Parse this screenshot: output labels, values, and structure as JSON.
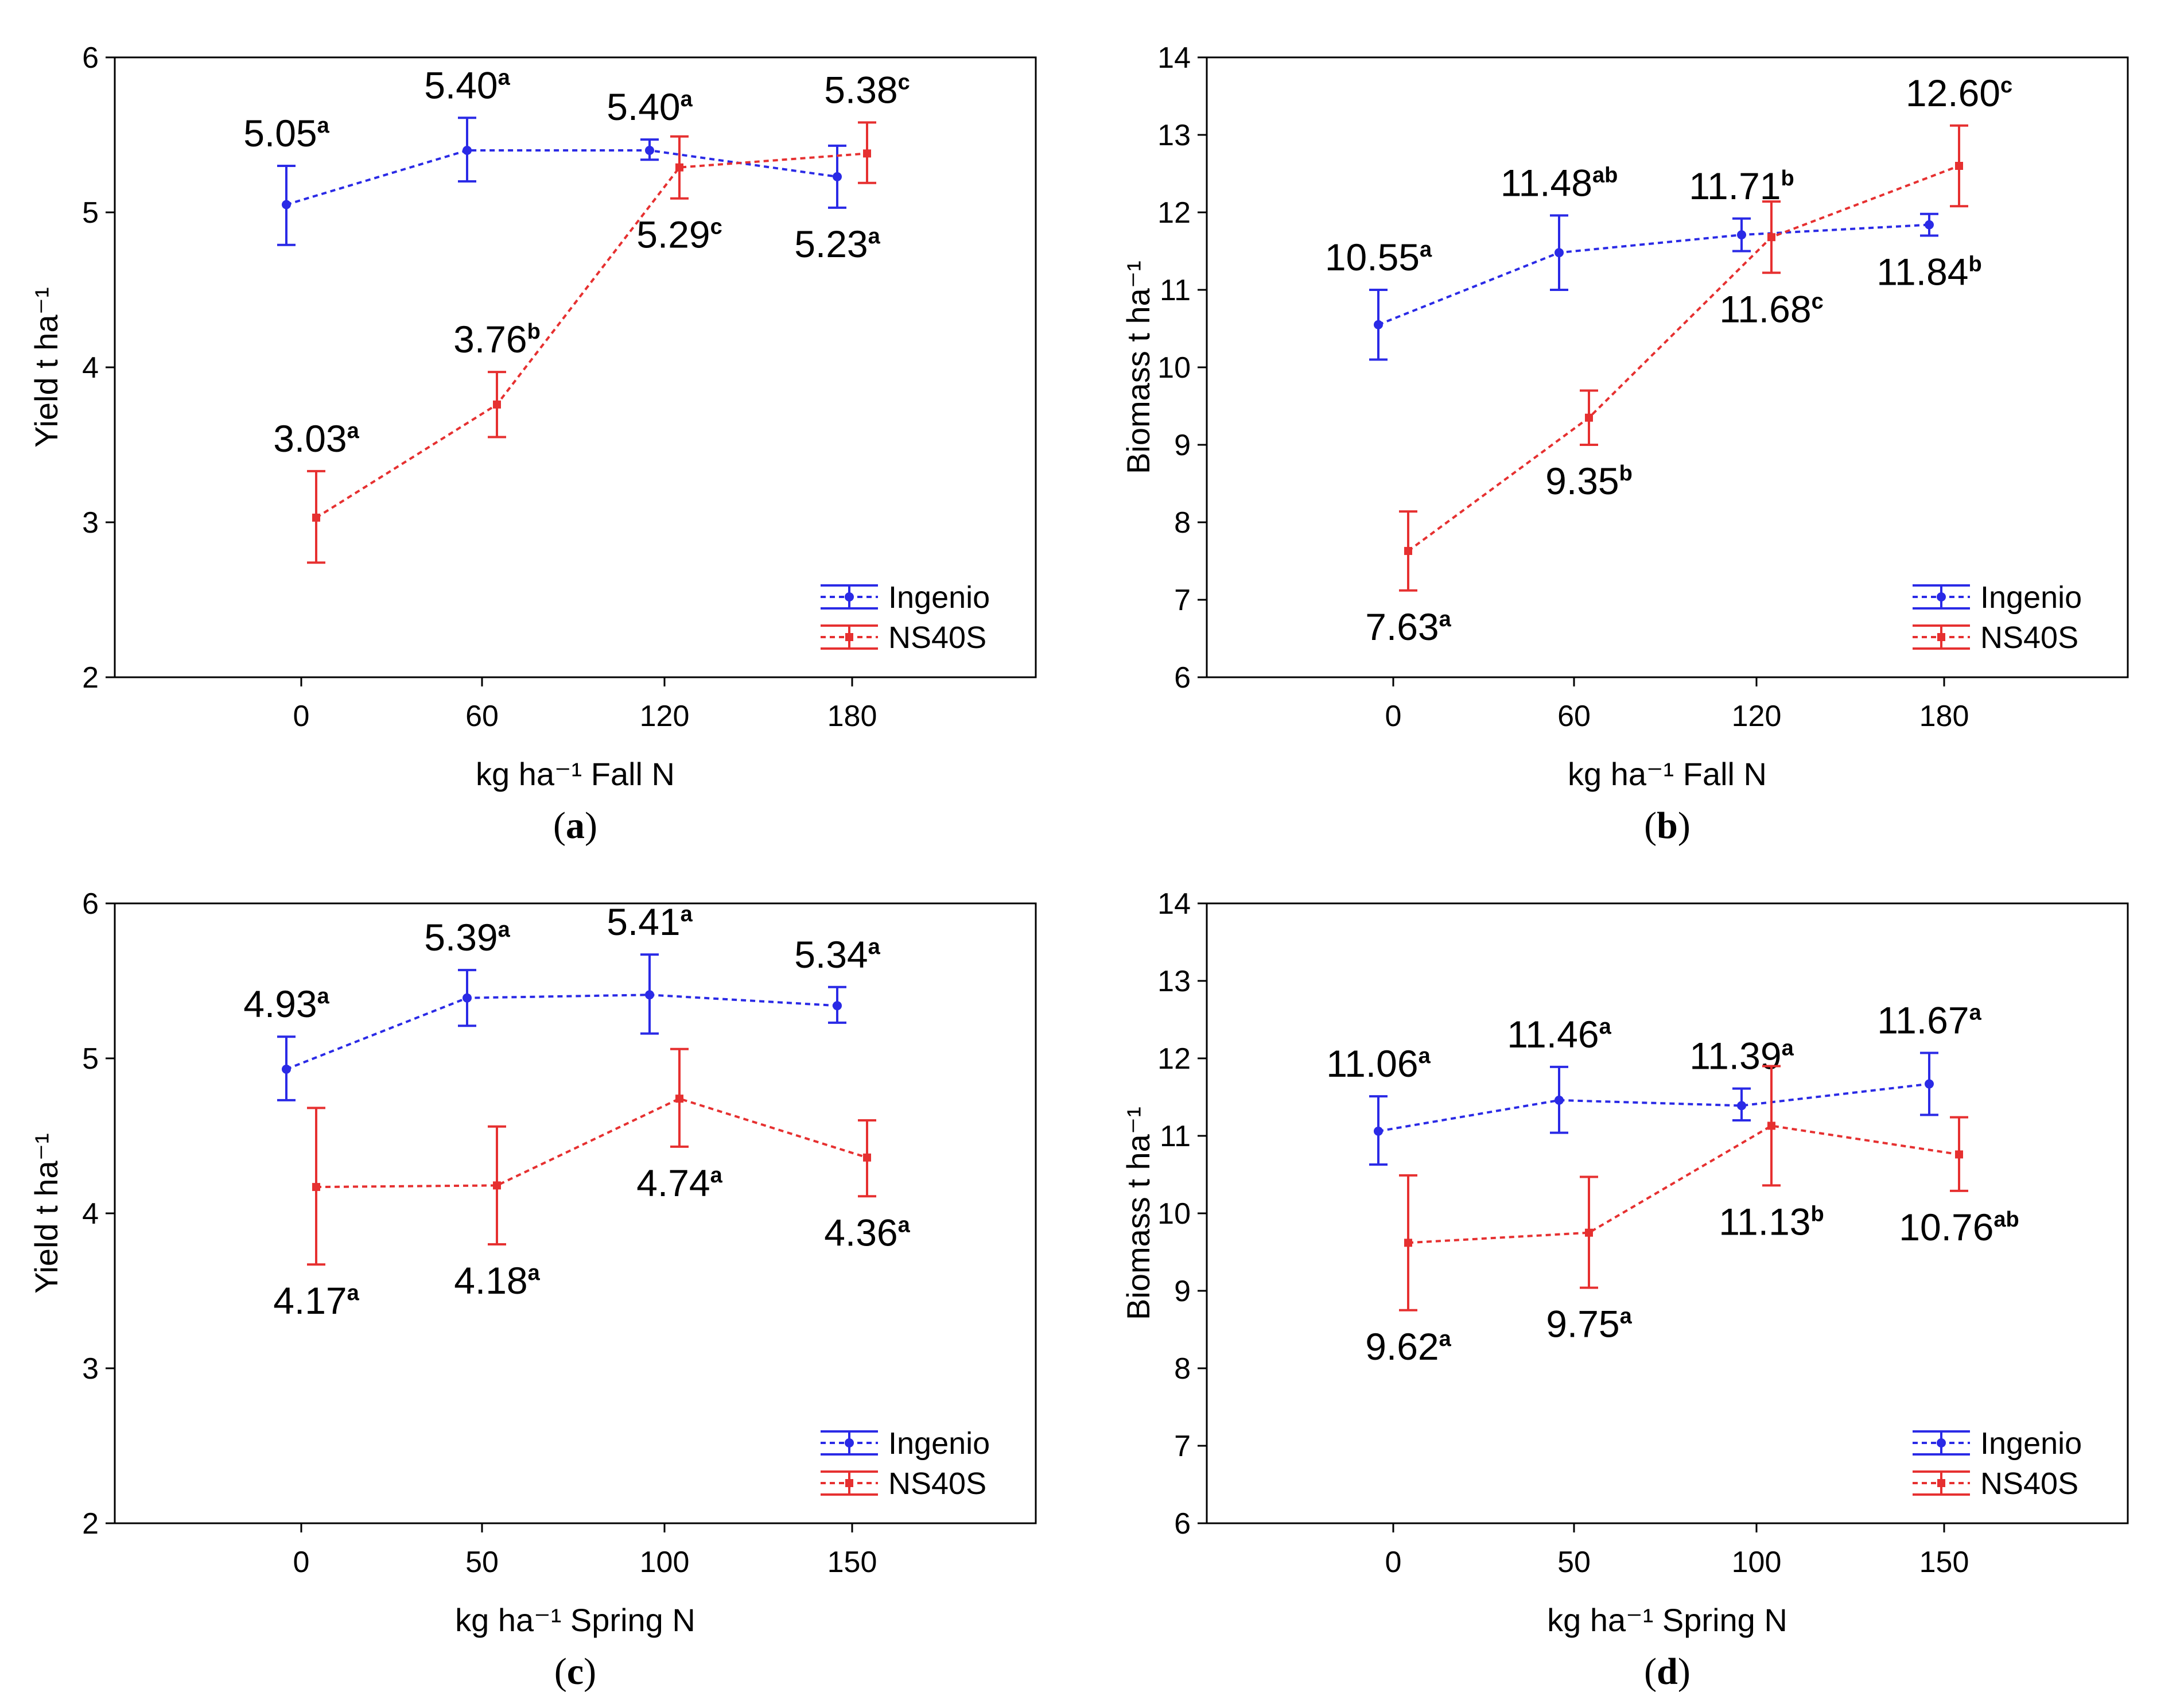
{
  "colors": {
    "ingenio": "#2a2ae6",
    "ns40s": "#e63030"
  },
  "chart_data": [
    {
      "panel": "a",
      "caption_letter": "a",
      "type": "line",
      "xlabel": "kg ha⁻¹ Fall N",
      "ylabel": "Yield t ha⁻¹",
      "categories": [
        "0",
        "60",
        "120",
        "180"
      ],
      "ylim": [
        2,
        6
      ],
      "yticks": [
        2,
        3,
        4,
        5,
        6
      ],
      "series": [
        {
          "name": "Ingenio",
          "color": "#2a2ae6",
          "values": [
            5.05,
            5.4,
            5.4,
            5.23
          ],
          "err_low": [
            4.79,
            5.2,
            5.34,
            5.03
          ],
          "err_high": [
            5.3,
            5.61,
            5.47,
            5.43
          ],
          "labels": [
            "5.05",
            "5.40",
            "5.40",
            "5.23"
          ],
          "letters": [
            "a",
            "a",
            "a",
            "a"
          ],
          "label_side": [
            "above",
            "above",
            "above",
            "below"
          ]
        },
        {
          "name": "NS40S",
          "color": "#e63030",
          "values": [
            3.03,
            3.76,
            5.29,
            5.38
          ],
          "err_low": [
            2.74,
            3.55,
            5.09,
            5.19
          ],
          "err_high": [
            3.33,
            3.97,
            5.49,
            5.58
          ],
          "labels": [
            "3.03",
            "3.76",
            "5.29",
            "5.38"
          ],
          "letters": [
            "a",
            "b",
            "c",
            "c"
          ],
          "label_side": [
            "above",
            "above",
            "below",
            "above"
          ]
        }
      ]
    },
    {
      "panel": "b",
      "caption_letter": "b",
      "type": "line",
      "xlabel": "kg ha⁻¹ Fall N",
      "ylabel": "Biomass t ha⁻¹",
      "categories": [
        "0",
        "60",
        "120",
        "180"
      ],
      "ylim": [
        6,
        14
      ],
      "yticks": [
        6,
        7,
        8,
        9,
        10,
        11,
        12,
        13,
        14
      ],
      "series": [
        {
          "name": "Ingenio",
          "color": "#2a2ae6",
          "values": [
            10.55,
            11.48,
            11.71,
            11.84
          ],
          "err_low": [
            10.1,
            11.0,
            11.5,
            11.7
          ],
          "err_high": [
            11.0,
            11.96,
            11.92,
            11.98
          ],
          "labels": [
            "10.55",
            "11.48",
            "11.71",
            "11.84"
          ],
          "letters": [
            "a",
            "ab",
            "b",
            "b"
          ],
          "label_side": [
            "above",
            "above",
            "above",
            "below"
          ]
        },
        {
          "name": "NS40S",
          "color": "#e63030",
          "values": [
            7.63,
            9.35,
            11.68,
            12.6
          ],
          "err_low": [
            7.12,
            9.0,
            11.22,
            12.08
          ],
          "err_high": [
            8.14,
            9.7,
            12.14,
            13.12
          ],
          "labels": [
            "7.63",
            "9.35",
            "11.68",
            "12.60"
          ],
          "letters": [
            "a",
            "b",
            "c",
            "c"
          ],
          "label_side": [
            "below",
            "below",
            "below",
            "above"
          ]
        }
      ]
    },
    {
      "panel": "c",
      "caption_letter": "c",
      "type": "line",
      "xlabel": "kg ha⁻¹ Spring N",
      "ylabel": "Yield t ha⁻¹",
      "categories": [
        "0",
        "50",
        "100",
        "150"
      ],
      "ylim": [
        2,
        6
      ],
      "yticks": [
        2,
        3,
        4,
        5,
        6
      ],
      "series": [
        {
          "name": "Ingenio",
          "color": "#2a2ae6",
          "values": [
            4.93,
            5.39,
            5.41,
            5.34
          ],
          "err_low": [
            4.73,
            5.21,
            5.16,
            5.23
          ],
          "err_high": [
            5.14,
            5.57,
            5.67,
            5.46
          ],
          "labels": [
            "4.93",
            "5.39",
            "5.41",
            "5.34"
          ],
          "letters": [
            "a",
            "a",
            "a",
            "a"
          ],
          "label_side": [
            "above",
            "above",
            "above",
            "above"
          ]
        },
        {
          "name": "NS40S",
          "color": "#e63030",
          "values": [
            4.17,
            4.18,
            4.74,
            4.36
          ],
          "err_low": [
            3.67,
            3.8,
            4.43,
            4.11
          ],
          "err_high": [
            4.68,
            4.56,
            5.06,
            4.6
          ],
          "labels": [
            "4.17",
            "4.18",
            "4.74",
            "4.36"
          ],
          "letters": [
            "a",
            "a",
            "a",
            "a"
          ],
          "label_side": [
            "below",
            "below",
            "below",
            "below"
          ]
        }
      ]
    },
    {
      "panel": "d",
      "caption_letter": "d",
      "type": "line",
      "xlabel": "kg ha⁻¹ Spring N",
      "ylabel": "Biomass t ha⁻¹",
      "categories": [
        "0",
        "50",
        "100",
        "150"
      ],
      "ylim": [
        6,
        14
      ],
      "yticks": [
        6,
        7,
        8,
        9,
        10,
        11,
        12,
        13,
        14
      ],
      "series": [
        {
          "name": "Ingenio",
          "color": "#2a2ae6",
          "values": [
            11.06,
            11.46,
            11.39,
            11.67
          ],
          "err_low": [
            10.63,
            11.04,
            11.2,
            11.27
          ],
          "err_high": [
            11.51,
            11.89,
            11.61,
            12.07
          ],
          "labels": [
            "11.06",
            "11.46",
            "11.39",
            "11.67"
          ],
          "letters": [
            "a",
            "a",
            "a",
            "a"
          ],
          "label_side": [
            "above",
            "above",
            "above",
            "above"
          ]
        },
        {
          "name": "NS40S",
          "color": "#e63030",
          "values": [
            9.62,
            9.75,
            11.13,
            10.76
          ],
          "err_low": [
            8.75,
            9.04,
            10.36,
            10.29
          ],
          "err_high": [
            10.49,
            10.47,
            11.9,
            11.24
          ],
          "labels": [
            "9.62",
            "9.75",
            "11.13",
            "10.76"
          ],
          "letters": [
            "a",
            "a",
            "b",
            "ab"
          ],
          "label_side": [
            "below",
            "below",
            "below",
            "below"
          ]
        }
      ]
    }
  ]
}
